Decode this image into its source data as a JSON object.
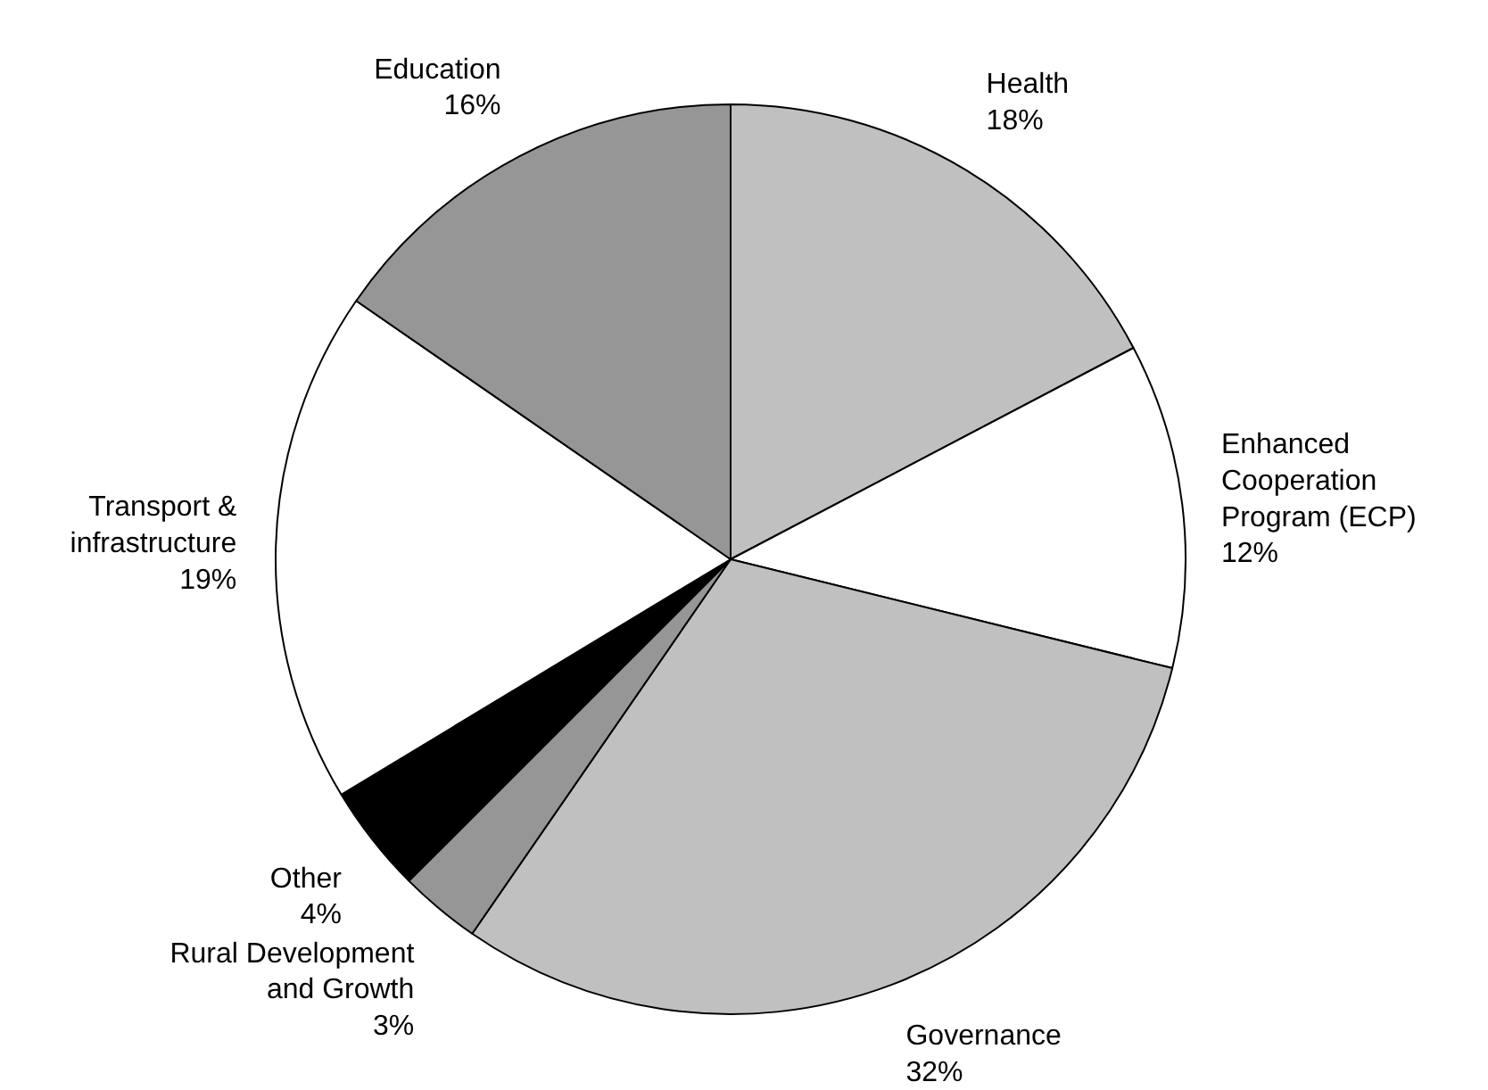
{
  "chart_data": {
    "type": "pie",
    "categories": [
      "Health",
      "Enhanced\nCooperation\nProgram (ECP)",
      "Governance",
      "Rural Development\nand Growth",
      "Other",
      "Transport &\ninfrastructure",
      "Education"
    ],
    "values": [
      18,
      12,
      32,
      3,
      4,
      19,
      16
    ],
    "value_labels": [
      "18%",
      "12%",
      "32%",
      "3%",
      "4%",
      "19%",
      "16%"
    ],
    "colors": [
      "#c0c0c0",
      "#ffffff",
      "#c0c0c0",
      "#969696",
      "#000000",
      "#ffffff",
      "#969696"
    ]
  }
}
